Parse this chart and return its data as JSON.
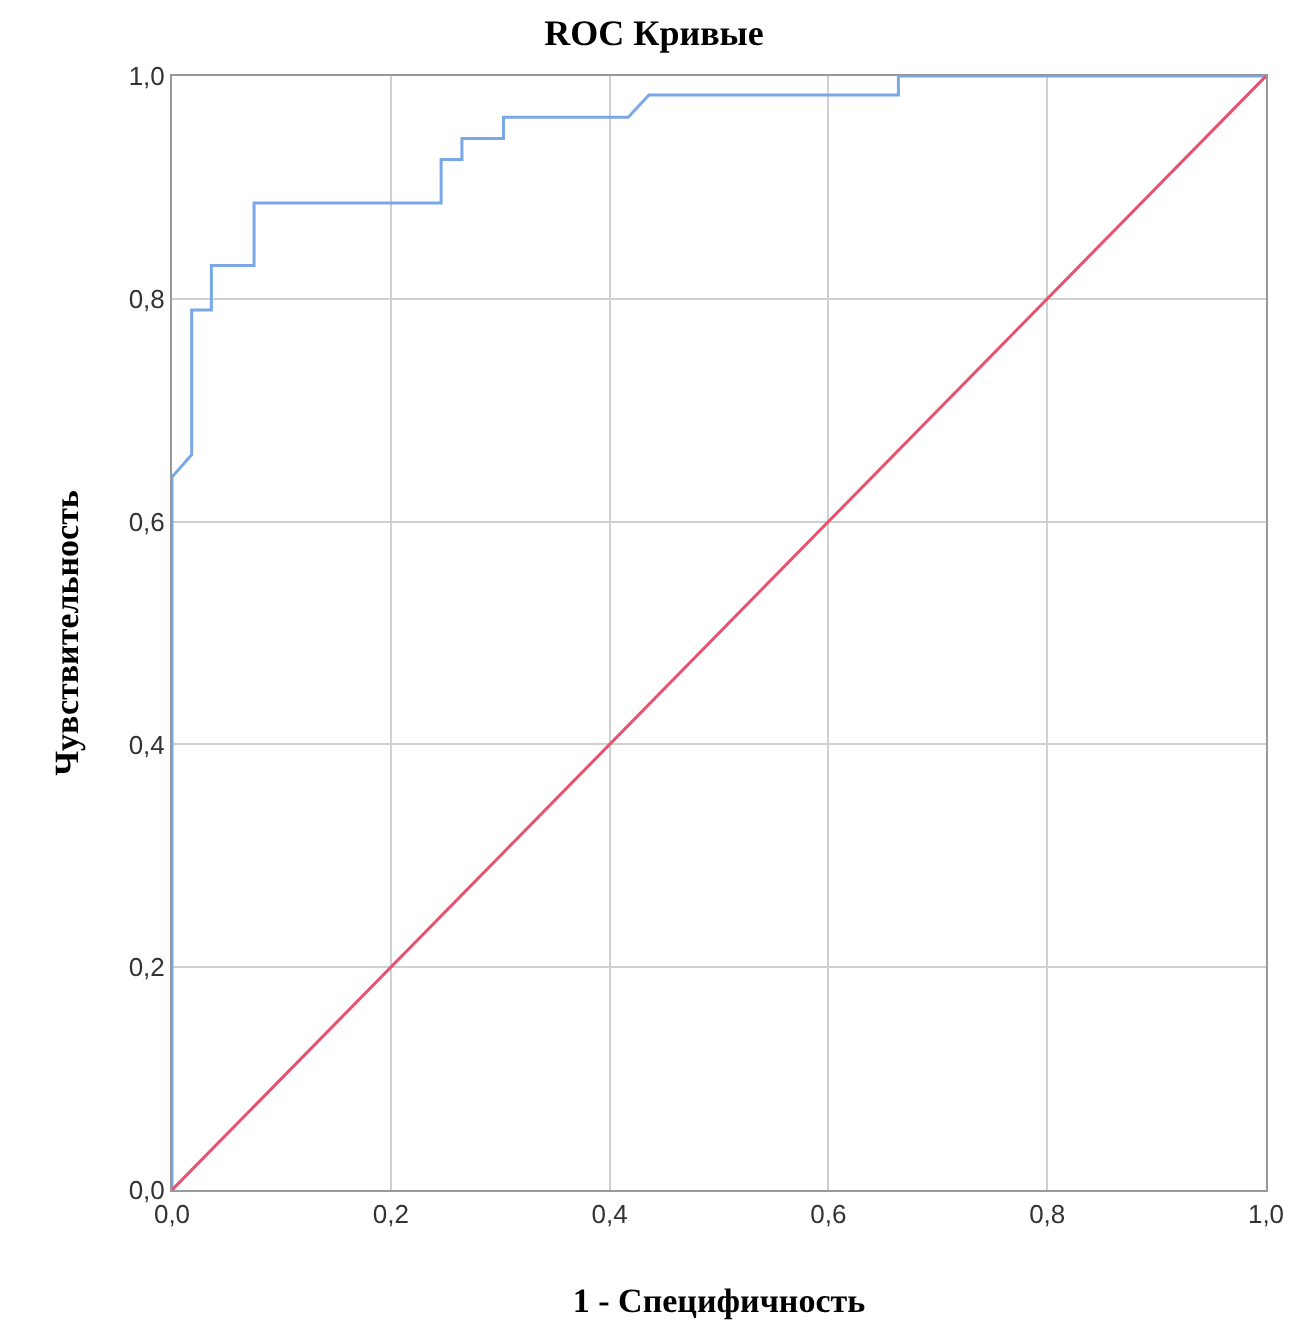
{
  "chart_data": {
    "type": "line",
    "title": "ROC Кривые",
    "xlabel": "1 - Специфичность",
    "ylabel": "Чувствительность",
    "series": [
      {
        "color": "#7aa7e8",
        "x": [
          0,
          0,
          0.018,
          0.018,
          0.036,
          0.036,
          0.075,
          0.075,
          0.246,
          0.246,
          0.265,
          0.265,
          0.303,
          0.303,
          0.417,
          0.436,
          0.664,
          0.664,
          1.0
        ],
        "values": [
          0,
          0.64,
          0.66,
          0.79,
          0.79,
          0.83,
          0.83,
          0.886,
          0.886,
          0.925,
          0.925,
          0.944,
          0.944,
          0.963,
          0.963,
          0.983,
          0.983,
          1.0,
          1.0
        ]
      },
      {
        "color": "#e8506e",
        "x": [
          0,
          1.0
        ],
        "values": [
          0,
          1.0
        ]
      }
    ],
    "xlim": [
      0,
      1.0
    ],
    "ylim": [
      0,
      1.0
    ],
    "xticks": [
      {
        "value": 0,
        "label": "0,0"
      },
      {
        "value": 0.2,
        "label": "0,2"
      },
      {
        "value": 0.4,
        "label": "0,4"
      },
      {
        "value": 0.6,
        "label": "0,6"
      },
      {
        "value": 0.8,
        "label": "0,8"
      },
      {
        "value": 1.0,
        "label": "1,0"
      }
    ],
    "yticks": [
      {
        "value": 0,
        "label": "0,0"
      },
      {
        "value": 0.2,
        "label": "0,2"
      },
      {
        "value": 0.4,
        "label": "0,4"
      },
      {
        "value": 0.6,
        "label": "0,6"
      },
      {
        "value": 0.8,
        "label": "0,8"
      },
      {
        "value": 1.0,
        "label": "1,0"
      }
    ],
    "grid": true
  }
}
